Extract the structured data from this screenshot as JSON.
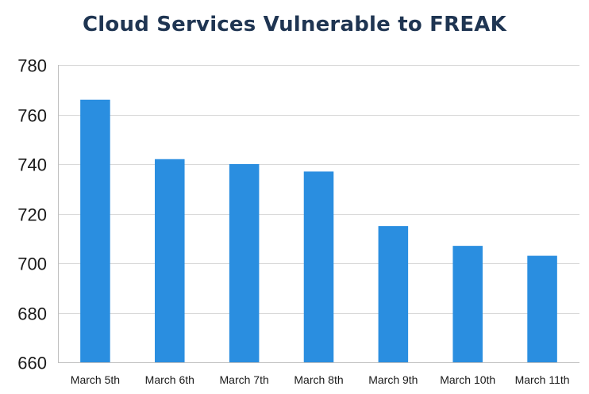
{
  "chart_data": {
    "type": "bar",
    "title": "Cloud Services Vulnerable to FREAK",
    "categories": [
      "March 5th",
      "March 6th",
      "March 7th",
      "March 8th",
      "March 9th",
      "March 10th",
      "March 11th"
    ],
    "values": [
      766,
      742,
      740,
      737,
      715,
      707,
      703
    ],
    "ylim": [
      660,
      780
    ],
    "yticks": [
      660,
      680,
      700,
      720,
      740,
      760,
      780
    ],
    "grid": true,
    "legend": "none",
    "bar_color": "#2a8ee0"
  }
}
